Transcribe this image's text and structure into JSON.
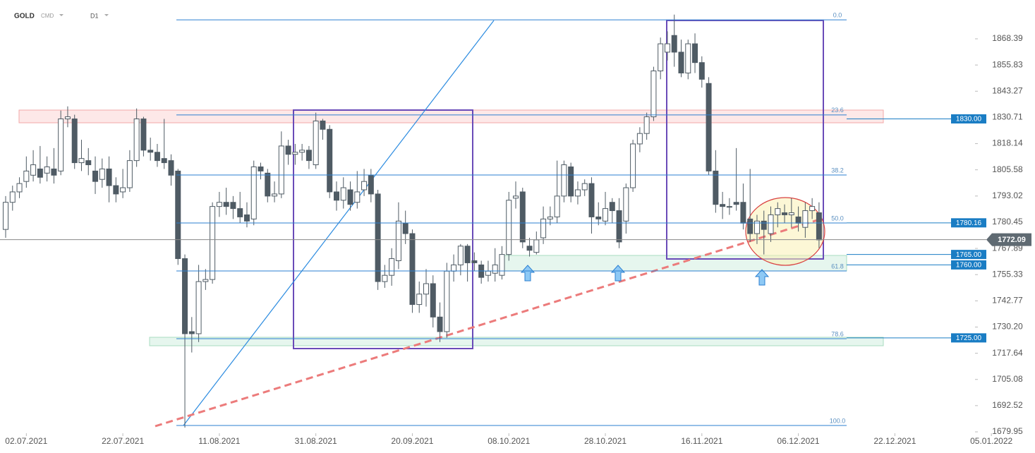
{
  "chart_data": {
    "type": "candlestick",
    "symbol": "GOLD",
    "market": "CMD",
    "timeframe": "D1",
    "open": [
      1777,
      1790,
      1795,
      1800,
      1803,
      1806,
      1804,
      1806,
      1805,
      1830,
      1830,
      1809,
      1810,
      1805,
      1801,
      1806,
      1798,
      1795,
      1797,
      1810,
      1830,
      1815,
      1814,
      1811,
      1810,
      1805,
      1763,
      1728,
      1727,
      1752,
      1753,
      1788,
      1790,
      1790,
      1787,
      1784,
      1782,
      1807,
      1804,
      1793,
      1794,
      1817,
      1813,
      1814,
      1815,
      1808,
      1829,
      1825,
      1795,
      1791,
      1796,
      1790,
      1796,
      1803,
      1794,
      1752,
      1755,
      1762,
      1780,
      1775,
      1741,
      1746,
      1751,
      1735,
      1728,
      1757,
      1760,
      1769,
      1762,
      1760,
      1755,
      1756,
      1755,
      1765,
      1792,
      1795,
      1769,
      1766,
      1773,
      1782,
      1783,
      1793,
      1807,
      1793,
      1796,
      1799,
      1783,
      1781,
      1790,
      1786,
      1781,
      1797,
      1818,
      1823,
      1831,
      1853,
      1862,
      1870,
      1862,
      1852,
      1866,
      1857,
      1847,
      1805,
      1789,
      1788,
      1790,
      1790,
      1782,
      1775,
      1781,
      1775,
      1784,
      1785,
      1784,
      1783,
      1778,
      1786,
      1785
    ],
    "high": [
      1793,
      1798,
      1802,
      1812,
      1815,
      1817,
      1812,
      1816,
      1834,
      1836,
      1832,
      1820,
      1816,
      1812,
      1811,
      1812,
      1802,
      1806,
      1815,
      1835,
      1831,
      1821,
      1818,
      1830,
      1813,
      1806,
      1765,
      1735,
      1760,
      1758,
      1790,
      1795,
      1797,
      1793,
      1795,
      1790,
      1810,
      1809,
      1806,
      1800,
      1824,
      1820,
      1818,
      1818,
      1817,
      1833,
      1830,
      1827,
      1800,
      1802,
      1800,
      1805,
      1806,
      1806,
      1796,
      1760,
      1768,
      1790,
      1786,
      1777,
      1752,
      1758,
      1755,
      1742,
      1761,
      1765,
      1770,
      1770,
      1766,
      1762,
      1762,
      1768,
      1769,
      1795,
      1800,
      1797,
      1773,
      1776,
      1788,
      1788,
      1810,
      1810,
      1809,
      1800,
      1801,
      1802,
      1790,
      1795,
      1792,
      1792,
      1799,
      1820,
      1826,
      1833,
      1855,
      1869,
      1872,
      1880,
      1868,
      1868,
      1871,
      1860,
      1850,
      1815,
      1795,
      1792,
      1816,
      1799,
      1806,
      1784,
      1786,
      1788,
      1790,
      1789,
      1792,
      1788,
      1790,
      1792,
      1790
    ],
    "low": [
      1773,
      1786,
      1792,
      1797,
      1800,
      1799,
      1800,
      1799,
      1803,
      1826,
      1806,
      1805,
      1803,
      1794,
      1797,
      1790,
      1790,
      1792,
      1795,
      1807,
      1812,
      1810,
      1807,
      1806,
      1798,
      1760,
      1682,
      1718,
      1723,
      1748,
      1751,
      1783,
      1784,
      1782,
      1780,
      1778,
      1779,
      1801,
      1790,
      1790,
      1792,
      1808,
      1808,
      1810,
      1806,
      1806,
      1820,
      1792,
      1786,
      1787,
      1786,
      1787,
      1793,
      1790,
      1748,
      1749,
      1750,
      1758,
      1770,
      1737,
      1737,
      1740,
      1730,
      1723,
      1725,
      1752,
      1755,
      1752,
      1757,
      1751,
      1752,
      1752,
      1753,
      1762,
      1787,
      1768,
      1764,
      1765,
      1770,
      1779,
      1780,
      1790,
      1790,
      1789,
      1793,
      1775,
      1779,
      1779,
      1780,
      1768,
      1775,
      1795,
      1814,
      1820,
      1829,
      1849,
      1858,
      1855,
      1850,
      1849,
      1852,
      1845,
      1803,
      1785,
      1782,
      1784,
      1786,
      1777,
      1771,
      1770,
      1765,
      1771,
      1778,
      1780,
      1778,
      1776,
      1773,
      1782,
      1768
    ],
    "close": [
      1790,
      1795,
      1799,
      1805,
      1808,
      1802,
      1807,
      1803,
      1830,
      1831,
      1809,
      1811,
      1808,
      1800,
      1806,
      1798,
      1794,
      1797,
      1810,
      1830,
      1815,
      1814,
      1810,
      1809,
      1803,
      1763,
      1727,
      1727,
      1752,
      1753,
      1788,
      1790,
      1788,
      1787,
      1783,
      1781,
      1807,
      1805,
      1793,
      1794,
      1817,
      1813,
      1814,
      1815,
      1810,
      1829,
      1825,
      1795,
      1791,
      1797,
      1789,
      1795,
      1800,
      1794,
      1752,
      1755,
      1763,
      1781,
      1775,
      1741,
      1746,
      1751,
      1735,
      1728,
      1757,
      1760,
      1769,
      1761,
      1761,
      1754,
      1757,
      1760,
      1765,
      1791,
      1793,
      1771,
      1767,
      1772,
      1782,
      1783,
      1793,
      1808,
      1793,
      1796,
      1799,
      1783,
      1782,
      1787,
      1786,
      1771,
      1797,
      1818,
      1823,
      1831,
      1853,
      1866,
      1866,
      1862,
      1852,
      1866,
      1857,
      1849,
      1805,
      1789,
      1788,
      1788,
      1789,
      1780,
      1775,
      1781,
      1777,
      1784,
      1787,
      1784,
      1785,
      1780,
      1786,
      1788,
      1772
    ],
    "xlim": [
      -0.82,
      140.63
    ],
    "xticks": [
      {
        "value": 3,
        "label": "02.07.2021"
      },
      {
        "value": 17,
        "label": "22.07.2021"
      },
      {
        "value": 31,
        "label": "11.08.2021"
      },
      {
        "value": 45,
        "label": "31.08.2021"
      },
      {
        "value": 59,
        "label": "20.09.2021"
      },
      {
        "value": 73,
        "label": "08.10.2021"
      },
      {
        "value": 87,
        "label": "28.10.2021"
      },
      {
        "value": 101,
        "label": "16.11.2021"
      },
      {
        "value": 115,
        "label": "06.12.2021"
      },
      {
        "value": 129,
        "label": "22.12.2021"
      },
      {
        "value": 143,
        "label": "05.01.2022"
      }
    ],
    "ylim": [
      1677.93,
      1887.0
    ],
    "yticks": [
      1868.39,
      1855.83,
      1843.27,
      1830.71,
      1818.14,
      1805.58,
      1793.02,
      1780.45,
      1767.89,
      1755.33,
      1742.77,
      {
        "value": 1730.2,
        "label": "1730.20"
      },
      1717.64,
      1705.08,
      1692.52,
      1679.95
    ],
    "fib_levels": [
      {
        "value": 0,
        "label": "0.0",
        "price": 1877.5
      },
      {
        "value": 23.6,
        "label": "23.6",
        "price": 1831.9
      },
      {
        "value": 38.2,
        "label": "38.2",
        "price": 1803.1
      },
      {
        "value": 50,
        "label": "50.0",
        "price": 1780.1
      },
      {
        "value": 61.8,
        "label": "61.8",
        "price": 1757.1
      },
      {
        "value": 78.6,
        "label": "78.6",
        "price": 1724.6
      },
      {
        "value": 100,
        "label": "100.0",
        "price": 1683.0
      }
    ],
    "price_labels": [
      {
        "value": 1830,
        "label": "1830.00"
      },
      1780.16,
      {
        "value": 1765,
        "label": "1765.00"
      },
      {
        "value": 1760,
        "label": "1760.00"
      },
      {
        "value": 1725,
        "label": "1725.00"
      }
    ],
    "last_price": 1772.09
  }
}
